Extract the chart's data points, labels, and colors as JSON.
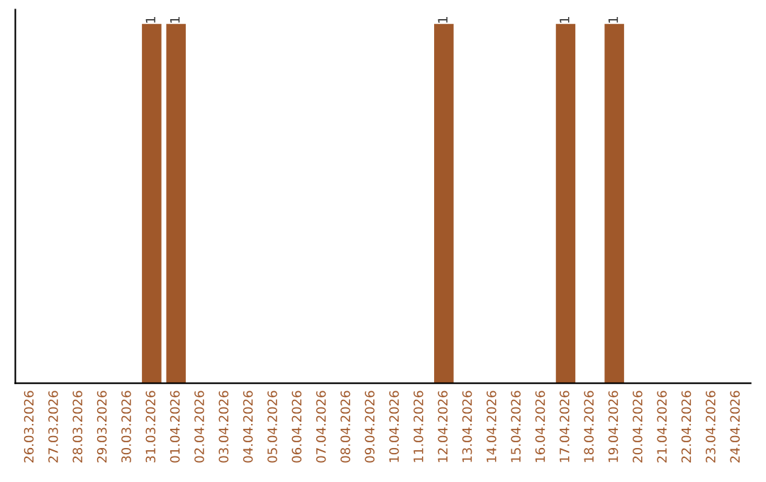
{
  "chart_data": {
    "type": "bar",
    "categories": [
      "26.03.2026",
      "27.03.2026",
      "28.03.2026",
      "29.03.2026",
      "30.03.2026",
      "31.03.2026",
      "01.04.2026",
      "02.04.2026",
      "03.04.2026",
      "04.04.2026",
      "05.04.2026",
      "06.04.2026",
      "07.04.2026",
      "08.04.2026",
      "09.04.2026",
      "10.04.2026",
      "11.04.2026",
      "12.04.2026",
      "13.04.2026",
      "14.04.2026",
      "15.04.2026",
      "16.04.2026",
      "17.04.2026",
      "18.04.2026",
      "19.04.2026",
      "20.04.2026",
      "21.04.2026",
      "22.04.2026",
      "23.04.2026",
      "24.04.2026"
    ],
    "values": [
      0,
      0,
      0,
      0,
      0,
      1,
      1,
      0,
      0,
      0,
      0,
      0,
      0,
      0,
      0,
      0,
      0,
      1,
      0,
      0,
      0,
      0,
      1,
      0,
      1,
      0,
      0,
      0,
      0,
      0
    ],
    "color": "#a0582a",
    "value_labels": [
      null,
      null,
      null,
      null,
      null,
      "1",
      "1",
      null,
      null,
      null,
      null,
      null,
      null,
      null,
      null,
      null,
      null,
      "1",
      null,
      null,
      null,
      null,
      "1",
      null,
      "1",
      null,
      null,
      null,
      null,
      null
    ],
    "tick_labels": "x",
    "grid": false
  }
}
